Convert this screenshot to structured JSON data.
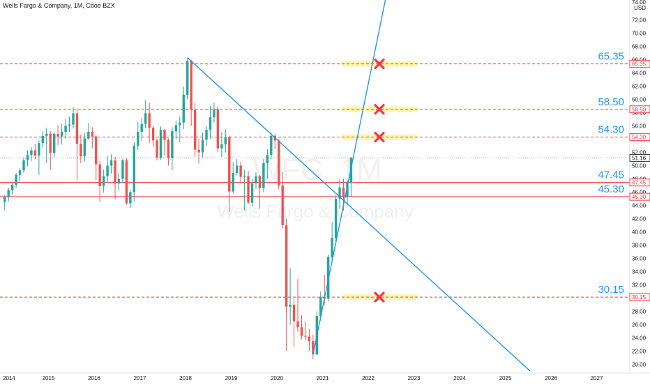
{
  "header": {
    "symbol_title": "Wells Fargo & Company, 1M, Cboe BZX",
    "currency_line1": "74.00",
    "currency_line2": "USD"
  },
  "watermark": {
    "ticker": "WFC, 1M",
    "name": "Wells Fargo & Company"
  },
  "colors": {
    "up": "#26a69a",
    "down": "#ef5350",
    "trendline": "#2196f3",
    "level_solid": "#f23645",
    "level_dashed": "#f23645",
    "level_text": "#2196f3",
    "highlight": "#fff59d",
    "cross": "#f23645",
    "axis_text": "#131722"
  },
  "chart_data": {
    "type": "candlestick",
    "title": "Wells Fargo & Company, 1M, Cboe BZX",
    "y_axis": {
      "unit": "USD",
      "range": [
        19.0,
        75.0
      ],
      "ticks": [
        20.0,
        22.0,
        24.0,
        26.0,
        28.0,
        30.0,
        32.0,
        34.0,
        36.0,
        38.0,
        40.0,
        42.0,
        44.0,
        46.0,
        48.0,
        50.0,
        52.0,
        54.0,
        56.0,
        58.0,
        60.0,
        62.0,
        64.0,
        66.0,
        68.0,
        70.0,
        72.0
      ]
    },
    "x_axis": {
      "ticks": [
        "2014",
        "2015",
        "2016",
        "2017",
        "2018",
        "2019",
        "2020",
        "2021",
        "2022",
        "2023",
        "2024",
        "2025",
        "2026",
        "2027"
      ],
      "range": [
        "2014-01",
        "2027-12"
      ]
    },
    "grid": false,
    "candles": [
      {
        "t": "2014-01",
        "o": 44.5,
        "h": 45.6,
        "l": 43.2,
        "c": 45.3
      },
      {
        "t": "2014-02",
        "o": 45.3,
        "h": 46.6,
        "l": 44.6,
        "c": 46.3
      },
      {
        "t": "2014-03",
        "o": 46.3,
        "h": 47.4,
        "l": 45.6,
        "c": 47.1
      },
      {
        "t": "2014-04",
        "o": 47.1,
        "h": 48.9,
        "l": 46.6,
        "c": 48.6
      },
      {
        "t": "2014-05",
        "o": 48.6,
        "h": 49.6,
        "l": 47.5,
        "c": 49.3
      },
      {
        "t": "2014-06",
        "o": 49.3,
        "h": 51.2,
        "l": 48.9,
        "c": 50.8
      },
      {
        "t": "2014-07",
        "o": 50.8,
        "h": 52.3,
        "l": 49.9,
        "c": 51.6
      },
      {
        "t": "2014-08",
        "o": 51.6,
        "h": 52.8,
        "l": 50.7,
        "c": 52.3
      },
      {
        "t": "2014-09",
        "o": 52.3,
        "h": 53.3,
        "l": 51.0,
        "c": 51.5
      },
      {
        "t": "2014-10",
        "o": 51.5,
        "h": 53.8,
        "l": 48.6,
        "c": 53.4
      },
      {
        "t": "2014-11",
        "o": 53.4,
        "h": 55.2,
        "l": 52.6,
        "c": 54.5
      },
      {
        "t": "2014-12",
        "o": 54.5,
        "h": 55.7,
        "l": 50.4,
        "c": 54.8
      },
      {
        "t": "2015-01",
        "o": 54.8,
        "h": 55.2,
        "l": 49.4,
        "c": 51.9
      },
      {
        "t": "2015-02",
        "o": 51.9,
        "h": 55.1,
        "l": 51.3,
        "c": 54.8
      },
      {
        "t": "2015-03",
        "o": 54.8,
        "h": 56.1,
        "l": 53.1,
        "c": 54.4
      },
      {
        "t": "2015-04",
        "o": 54.4,
        "h": 56.3,
        "l": 53.2,
        "c": 55.1
      },
      {
        "t": "2015-05",
        "o": 55.1,
        "h": 57.1,
        "l": 54.1,
        "c": 56.0
      },
      {
        "t": "2015-06",
        "o": 56.0,
        "h": 57.4,
        "l": 55.1,
        "c": 56.2
      },
      {
        "t": "2015-07",
        "o": 56.2,
        "h": 58.8,
        "l": 55.6,
        "c": 57.9
      },
      {
        "t": "2015-08",
        "o": 57.9,
        "h": 58.6,
        "l": 47.8,
        "c": 53.3
      },
      {
        "t": "2015-09",
        "o": 53.3,
        "h": 54.7,
        "l": 50.4,
        "c": 51.4
      },
      {
        "t": "2015-10",
        "o": 51.4,
        "h": 54.9,
        "l": 50.6,
        "c": 54.1
      },
      {
        "t": "2015-11",
        "o": 54.1,
        "h": 56.4,
        "l": 53.9,
        "c": 55.1
      },
      {
        "t": "2015-12",
        "o": 55.1,
        "h": 55.8,
        "l": 52.6,
        "c": 54.4
      },
      {
        "t": "2016-01",
        "o": 54.4,
        "h": 54.6,
        "l": 47.8,
        "c": 50.2
      },
      {
        "t": "2016-02",
        "o": 50.2,
        "h": 50.7,
        "l": 44.5,
        "c": 46.9
      },
      {
        "t": "2016-03",
        "o": 46.9,
        "h": 49.4,
        "l": 45.9,
        "c": 48.4
      },
      {
        "t": "2016-04",
        "o": 48.4,
        "h": 51.4,
        "l": 47.4,
        "c": 50.0
      },
      {
        "t": "2016-05",
        "o": 50.0,
        "h": 51.7,
        "l": 48.8,
        "c": 50.8
      },
      {
        "t": "2016-06",
        "o": 50.8,
        "h": 51.3,
        "l": 44.9,
        "c": 47.3
      },
      {
        "t": "2016-07",
        "o": 47.3,
        "h": 48.9,
        "l": 46.2,
        "c": 48.0
      },
      {
        "t": "2016-08",
        "o": 48.0,
        "h": 51.0,
        "l": 47.4,
        "c": 50.8
      },
      {
        "t": "2016-09",
        "o": 50.8,
        "h": 51.1,
        "l": 44.1,
        "c": 44.3
      },
      {
        "t": "2016-10",
        "o": 44.3,
        "h": 46.3,
        "l": 43.6,
        "c": 46.0
      },
      {
        "t": "2016-11",
        "o": 46.0,
        "h": 53.5,
        "l": 44.6,
        "c": 53.0
      },
      {
        "t": "2016-12",
        "o": 53.0,
        "h": 56.6,
        "l": 52.4,
        "c": 55.1
      },
      {
        "t": "2017-01",
        "o": 55.1,
        "h": 57.2,
        "l": 53.7,
        "c": 56.3
      },
      {
        "t": "2017-02",
        "o": 56.3,
        "h": 59.9,
        "l": 55.6,
        "c": 57.9
      },
      {
        "t": "2017-03",
        "o": 57.9,
        "h": 59.5,
        "l": 53.4,
        "c": 55.7
      },
      {
        "t": "2017-04",
        "o": 55.7,
        "h": 56.0,
        "l": 52.8,
        "c": 53.8
      },
      {
        "t": "2017-05",
        "o": 53.8,
        "h": 54.1,
        "l": 50.8,
        "c": 51.2
      },
      {
        "t": "2017-06",
        "o": 51.2,
        "h": 55.9,
        "l": 50.9,
        "c": 55.4
      },
      {
        "t": "2017-07",
        "o": 55.4,
        "h": 55.5,
        "l": 51.6,
        "c": 53.9
      },
      {
        "t": "2017-08",
        "o": 53.9,
        "h": 54.1,
        "l": 50.0,
        "c": 51.1
      },
      {
        "t": "2017-09",
        "o": 51.1,
        "h": 55.8,
        "l": 49.3,
        "c": 55.2
      },
      {
        "t": "2017-10",
        "o": 55.2,
        "h": 56.8,
        "l": 54.0,
        "c": 56.1
      },
      {
        "t": "2017-11",
        "o": 56.1,
        "h": 57.4,
        "l": 53.5,
        "c": 56.5
      },
      {
        "t": "2017-12",
        "o": 56.5,
        "h": 61.9,
        "l": 55.5,
        "c": 60.7
      },
      {
        "t": "2018-01",
        "o": 60.7,
        "h": 66.3,
        "l": 60.0,
        "c": 65.8
      },
      {
        "t": "2018-02",
        "o": 65.8,
        "h": 66.0,
        "l": 56.0,
        "c": 58.4
      },
      {
        "t": "2018-03",
        "o": 58.4,
        "h": 59.5,
        "l": 51.3,
        "c": 52.4
      },
      {
        "t": "2018-04",
        "o": 52.4,
        "h": 54.0,
        "l": 50.3,
        "c": 52.0
      },
      {
        "t": "2018-05",
        "o": 52.0,
        "h": 55.0,
        "l": 51.2,
        "c": 53.9
      },
      {
        "t": "2018-06",
        "o": 53.9,
        "h": 56.0,
        "l": 53.0,
        "c": 55.4
      },
      {
        "t": "2018-07",
        "o": 55.4,
        "h": 59.0,
        "l": 54.0,
        "c": 57.3
      },
      {
        "t": "2018-08",
        "o": 57.3,
        "h": 59.5,
        "l": 56.5,
        "c": 58.5
      },
      {
        "t": "2018-09",
        "o": 58.5,
        "h": 59.0,
        "l": 52.0,
        "c": 52.6
      },
      {
        "t": "2018-10",
        "o": 52.6,
        "h": 55.0,
        "l": 51.3,
        "c": 53.2
      },
      {
        "t": "2018-11",
        "o": 53.2,
        "h": 55.5,
        "l": 52.0,
        "c": 54.3
      },
      {
        "t": "2018-12",
        "o": 54.3,
        "h": 54.5,
        "l": 43.0,
        "c": 46.1
      },
      {
        "t": "2019-01",
        "o": 46.1,
        "h": 50.5,
        "l": 45.8,
        "c": 48.9
      },
      {
        "t": "2019-02",
        "o": 48.9,
        "h": 51.0,
        "l": 48.5,
        "c": 50.0
      },
      {
        "t": "2019-03",
        "o": 50.0,
        "h": 50.6,
        "l": 47.3,
        "c": 48.3
      },
      {
        "t": "2019-04",
        "o": 48.3,
        "h": 49.3,
        "l": 43.2,
        "c": 48.4
      },
      {
        "t": "2019-05",
        "o": 48.4,
        "h": 49.2,
        "l": 44.2,
        "c": 44.4
      },
      {
        "t": "2019-06",
        "o": 44.4,
        "h": 48.0,
        "l": 43.8,
        "c": 47.3
      },
      {
        "t": "2019-07",
        "o": 47.3,
        "h": 49.0,
        "l": 46.5,
        "c": 48.4
      },
      {
        "t": "2019-08",
        "o": 48.4,
        "h": 48.6,
        "l": 43.5,
        "c": 46.6
      },
      {
        "t": "2019-09",
        "o": 46.6,
        "h": 51.0,
        "l": 46.0,
        "c": 50.4
      },
      {
        "t": "2019-10",
        "o": 50.4,
        "h": 52.5,
        "l": 48.0,
        "c": 51.6
      },
      {
        "t": "2019-11",
        "o": 51.6,
        "h": 55.0,
        "l": 51.0,
        "c": 54.5
      },
      {
        "t": "2019-12",
        "o": 54.5,
        "h": 54.8,
        "l": 52.5,
        "c": 53.8
      },
      {
        "t": "2020-01",
        "o": 53.8,
        "h": 54.0,
        "l": 46.5,
        "c": 47.0
      },
      {
        "t": "2020-02",
        "o": 47.0,
        "h": 49.0,
        "l": 40.5,
        "c": 41.0
      },
      {
        "t": "2020-03",
        "o": 41.0,
        "h": 42.0,
        "l": 22.0,
        "c": 28.7
      },
      {
        "t": "2020-04",
        "o": 28.7,
        "h": 34.5,
        "l": 26.0,
        "c": 29.0
      },
      {
        "t": "2020-05",
        "o": 29.0,
        "h": 29.9,
        "l": 22.6,
        "c": 26.5
      },
      {
        "t": "2020-06",
        "o": 26.5,
        "h": 32.9,
        "l": 24.9,
        "c": 25.6
      },
      {
        "t": "2020-07",
        "o": 25.6,
        "h": 27.4,
        "l": 23.8,
        "c": 24.3
      },
      {
        "t": "2020-08",
        "o": 24.3,
        "h": 26.5,
        "l": 23.6,
        "c": 24.2
      },
      {
        "t": "2020-09",
        "o": 24.2,
        "h": 25.3,
        "l": 22.0,
        "c": 23.5
      },
      {
        "t": "2020-10",
        "o": 23.5,
        "h": 24.5,
        "l": 20.8,
        "c": 21.5
      },
      {
        "t": "2020-11",
        "o": 21.5,
        "h": 28.0,
        "l": 21.3,
        "c": 27.3
      },
      {
        "t": "2020-12",
        "o": 27.3,
        "h": 31.0,
        "l": 26.6,
        "c": 30.2
      },
      {
        "t": "2021-01",
        "o": 30.2,
        "h": 33.5,
        "l": 29.0,
        "c": 29.9
      },
      {
        "t": "2021-02",
        "o": 29.9,
        "h": 36.5,
        "l": 29.5,
        "c": 36.2
      },
      {
        "t": "2021-03",
        "o": 36.2,
        "h": 41.5,
        "l": 35.5,
        "c": 39.1
      },
      {
        "t": "2021-04",
        "o": 39.1,
        "h": 45.5,
        "l": 38.5,
        "c": 45.0
      },
      {
        "t": "2021-05",
        "o": 45.0,
        "h": 48.0,
        "l": 43.5,
        "c": 46.7
      },
      {
        "t": "2021-06",
        "o": 46.7,
        "h": 48.0,
        "l": 43.2,
        "c": 45.3
      },
      {
        "t": "2021-07",
        "o": 45.3,
        "h": 47.8,
        "l": 44.0,
        "c": 47.4
      },
      {
        "t": "2021-08",
        "o": 47.4,
        "h": 51.3,
        "l": 45.2,
        "c": 51.2
      }
    ],
    "trendlines": [
      {
        "name": "descending",
        "from": {
          "t": "2018-01",
          "price": 66.3
        },
        "to": {
          "t": "2025-07",
          "price": 19.0
        }
      },
      {
        "name": "ascending",
        "from": {
          "t": "2020-10",
          "price": 21.5
        },
        "to": {
          "t": "2022-05",
          "price": 75.0
        }
      }
    ],
    "levels": [
      {
        "price": 65.35,
        "label": "65.35",
        "style": "dashed"
      },
      {
        "price": 58.5,
        "label": "58.50",
        "style": "dashed"
      },
      {
        "price": 54.3,
        "label": "54.30",
        "style": "dashed"
      },
      {
        "price": 47.45,
        "label": "47.45",
        "style": "solid"
      },
      {
        "price": 45.3,
        "label": "45.30",
        "style": "solid"
      },
      {
        "price": 30.15,
        "label": "30.15",
        "style": "dashed"
      }
    ],
    "target_marks": [
      {
        "price": 65.35
      },
      {
        "price": 58.5
      },
      {
        "price": 54.3
      },
      {
        "price": 30.15
      }
    ],
    "last_price": {
      "price": 51.16,
      "label": "51.16"
    }
  }
}
